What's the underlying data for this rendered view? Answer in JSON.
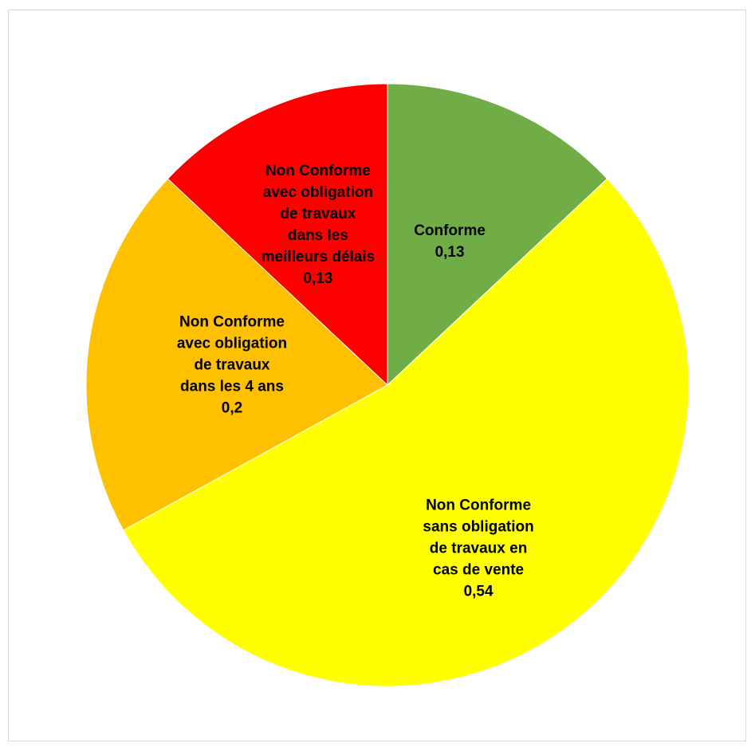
{
  "chart_data": {
    "type": "pie",
    "slices": [
      {
        "label": "Conforme",
        "value_text": "0,13",
        "value": 0.13,
        "color": "#70ad47"
      },
      {
        "label": "Non Conforme\nsans obligation\nde travaux en\ncas de vente",
        "value_text": "0,54",
        "value": 0.54,
        "color": "#ffff00"
      },
      {
        "label": "Non Conforme\navec obligation\nde travaux\ndans les 4 ans",
        "value_text": "0,2",
        "value": 0.2,
        "color": "#ffc000"
      },
      {
        "label": "Non Conforme\navec obligation\nde travaux\ndans les\nmeilleurs délais",
        "value_text": "0,13",
        "value": 0.13,
        "color": "#ff0000"
      }
    ],
    "start_angle": "top",
    "direction": "clockwise",
    "legend": "none"
  }
}
